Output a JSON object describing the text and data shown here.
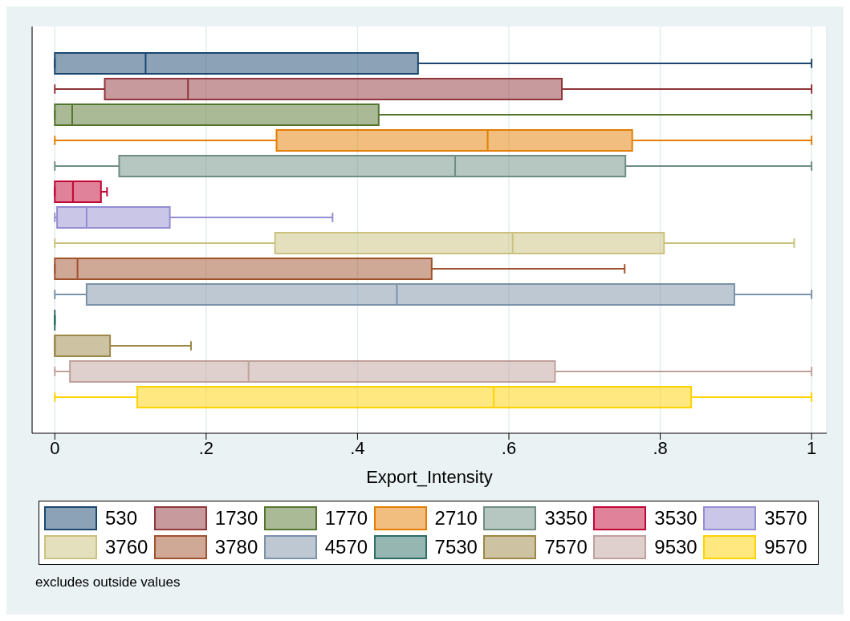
{
  "chart_data": {
    "type": "box",
    "orientation": "horizontal",
    "categories": [
      null
    ],
    "xlabel": "Export_Intensity",
    "xlim": [
      -0.03,
      1.02
    ],
    "xticks": [
      0,
      {
        "value": 0.2,
        "label": ".2"
      },
      {
        "value": 0.4,
        "label": ".4"
      },
      {
        "value": 0.6,
        "label": ".6"
      },
      {
        "value": 0.8,
        "label": ".8"
      },
      1
    ],
    "grid": "x",
    "legend": "bottom",
    "tick_labels": "x",
    "annotations": [
      "excludes outside values"
    ],
    "series": [
      {
        "name": "530",
        "color": "#1a476f",
        "boxes": [
          {
            "low": 0,
            "q1": 0,
            "median": 0.12,
            "q3": 0.48,
            "high": 1
          }
        ]
      },
      {
        "name": "1730",
        "color": "#90353b",
        "boxes": [
          {
            "low": 0,
            "q1": 0.066,
            "median": 0.176,
            "q3": 0.67,
            "high": 1
          }
        ]
      },
      {
        "name": "1770",
        "color": "#55752f",
        "boxes": [
          {
            "low": 0,
            "q1": 0,
            "median": 0.023,
            "q3": 0.428,
            "high": 1
          }
        ]
      },
      {
        "name": "2710",
        "color": "#e37e00",
        "boxes": [
          {
            "low": 0,
            "q1": 0.293,
            "median": 0.572,
            "q3": 0.763,
            "high": 1
          }
        ]
      },
      {
        "name": "3350",
        "color": "#6e8e84",
        "boxes": [
          {
            "low": 0,
            "q1": 0.085,
            "median": 0.529,
            "q3": 0.754,
            "high": 1
          }
        ]
      },
      {
        "name": "3530",
        "color": "#c10534",
        "boxes": [
          {
            "low": 0,
            "q1": 0,
            "median": 0.024,
            "q3": 0.061,
            "high": 0.069
          }
        ]
      },
      {
        "name": "3570",
        "color": "#938dd2",
        "boxes": [
          {
            "low": 0,
            "q1": 0.003,
            "median": 0.042,
            "q3": 0.152,
            "high": 0.367
          }
        ]
      },
      {
        "name": "3760",
        "color": "#cac27e",
        "boxes": [
          {
            "low": 0,
            "q1": 0.291,
            "median": 0.605,
            "q3": 0.805,
            "high": 0.977
          }
        ]
      },
      {
        "name": "3780",
        "color": "#a0522d",
        "boxes": [
          {
            "low": 0,
            "q1": 0,
            "median": 0.03,
            "q3": 0.498,
            "high": 0.753
          }
        ]
      },
      {
        "name": "4570",
        "color": "#7b92a8",
        "boxes": [
          {
            "low": 0,
            "q1": 0.042,
            "median": 0.452,
            "q3": 0.898,
            "high": 1
          }
        ]
      },
      {
        "name": "7530",
        "color": "#2d6d66",
        "boxes": [
          {
            "low": 0,
            "q1": 0,
            "median": 0,
            "q3": 0,
            "high": 0
          }
        ]
      },
      {
        "name": "7570",
        "color": "#9c8847",
        "boxes": [
          {
            "low": 0,
            "q1": 0,
            "median": 0,
            "q3": 0.073,
            "high": 0.18
          }
        ]
      },
      {
        "name": "9530",
        "color": "#bfa19c",
        "boxes": [
          {
            "low": 0,
            "q1": 0.02,
            "median": 0.256,
            "q3": 0.661,
            "high": 1
          }
        ]
      },
      {
        "name": "9570",
        "color": "#ffd200",
        "boxes": [
          {
            "low": 0,
            "q1": 0.109,
            "median": 0.58,
            "q3": 0.841,
            "high": 1
          }
        ]
      }
    ]
  }
}
